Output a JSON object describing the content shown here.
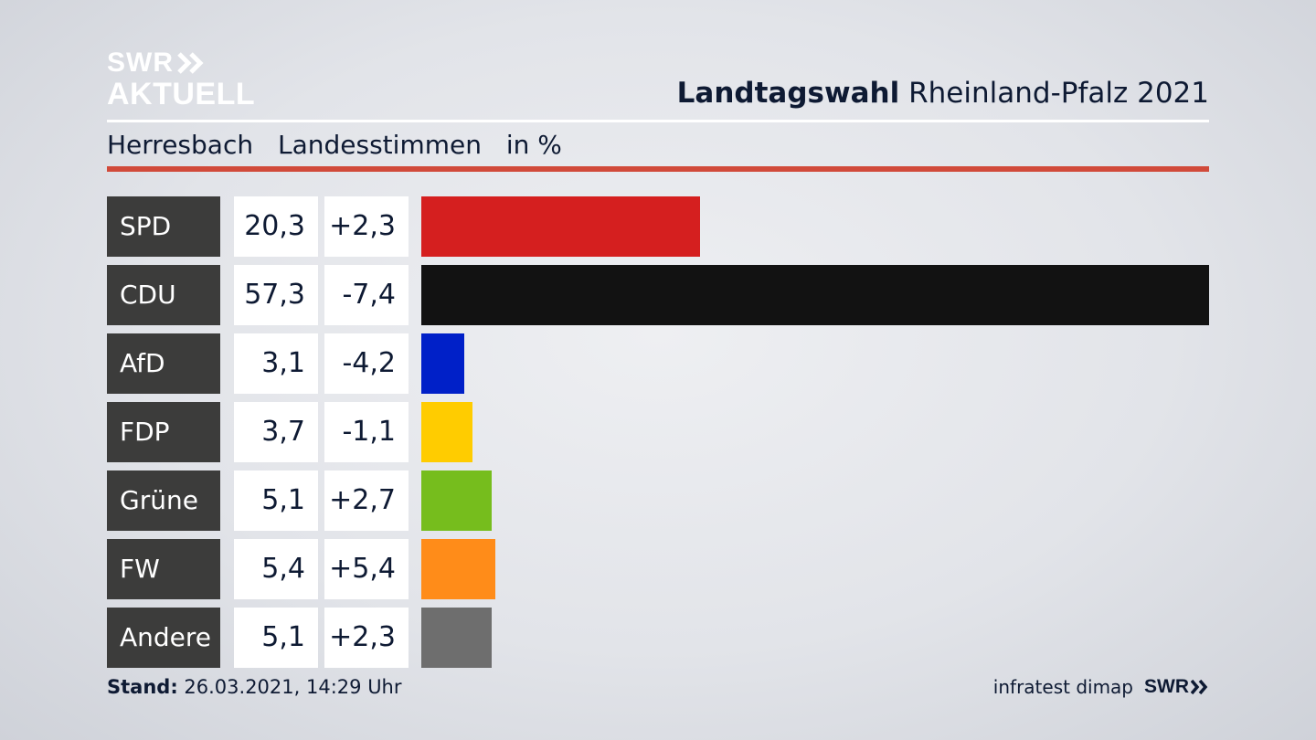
{
  "logo": {
    "line1": "SWR",
    "line2": "AKTUELL"
  },
  "header": {
    "title_bold": "Landtagswahl",
    "title_rest": "Rheinland-Pfalz 2021"
  },
  "subheader": {
    "place": "Herresbach",
    "vote_type": "Landesstimmen",
    "unit": "in %"
  },
  "chart_data": {
    "type": "bar",
    "orientation": "horizontal",
    "categories": [
      "SPD",
      "CDU",
      "AfD",
      "FDP",
      "Grüne",
      "FW",
      "Andere"
    ],
    "values": [
      20.3,
      57.3,
      3.1,
      3.7,
      5.1,
      5.4,
      5.1
    ],
    "value_labels": [
      "20,3",
      "57,3",
      "3,1",
      "3,7",
      "5,1",
      "5,4",
      "5,1"
    ],
    "diff_labels": [
      "+2,3",
      "-7,4",
      "-4,2",
      "-1,1",
      "+2,7",
      "+5,4",
      "+2,3"
    ],
    "colors": [
      "#d51f1f",
      "#121212",
      "#0020c8",
      "#ffcc00",
      "#76bd1d",
      "#ff8c19",
      "#6e6e6e"
    ],
    "xlim": [
      0,
      57.3
    ],
    "grid": false,
    "legend": "none"
  },
  "footer": {
    "stand_label": "Stand:",
    "stand_value": "26.03.2021, 14:29 Uhr",
    "source": "infratest dimap",
    "brand": "SWR"
  }
}
